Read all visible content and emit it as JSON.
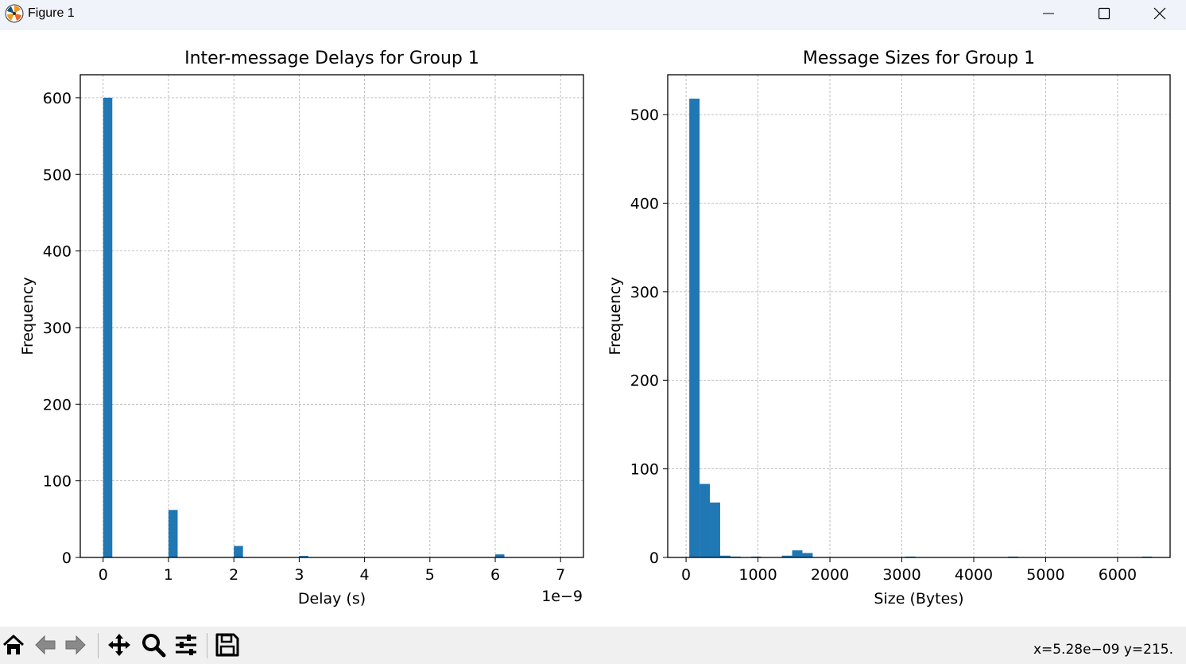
{
  "window": {
    "title": "Figure 1",
    "icon": "matplotlib-icon",
    "controls": {
      "minimize": "minimize-icon",
      "maximize": "maximize-icon",
      "close": "close-icon"
    }
  },
  "toolbar": {
    "tools": [
      "home-icon",
      "back-icon",
      "forward-icon",
      "pan-icon",
      "zoom-icon",
      "configure-subplots-icon",
      "save-icon"
    ],
    "coords": "x=5.28e−09 y=215."
  },
  "colors": {
    "bar": "#1f77b4",
    "grid": "#b0b0b0",
    "axes": "#000000"
  },
  "chart_data": [
    {
      "type": "bar",
      "title": "Inter-message Delays for Group 1",
      "xlabel": "Delay (s)",
      "ylabel": "Frequency",
      "offset_text": "1e−9",
      "x_ticks": [
        0,
        1,
        2,
        3,
        4,
        5,
        6,
        7
      ],
      "x_tick_labels": [
        "0",
        "1",
        "2",
        "3",
        "4",
        "5",
        "6",
        "7"
      ],
      "y_ticks": [
        0,
        100,
        200,
        300,
        400,
        500,
        600
      ],
      "y_tick_labels": [
        "0",
        "100",
        "200",
        "300",
        "400",
        "500",
        "600"
      ],
      "xlim": [
        -0.35,
        7.35
      ],
      "ylim": [
        0,
        630
      ],
      "grid": true,
      "bin_width": 0.14,
      "bars": [
        {
          "x": 0,
          "value": 600
        },
        {
          "x": 1,
          "value": 62
        },
        {
          "x": 2,
          "value": 15
        },
        {
          "x": 3,
          "value": 2
        },
        {
          "x": 6,
          "value": 4
        }
      ]
    },
    {
      "type": "bar",
      "title": "Message Sizes for Group 1",
      "xlabel": "Size (Bytes)",
      "ylabel": "Frequency",
      "offset_text": "",
      "x_ticks": [
        0,
        1000,
        2000,
        3000,
        4000,
        5000,
        6000
      ],
      "x_tick_labels": [
        "0",
        "1000",
        "2000",
        "3000",
        "4000",
        "5000",
        "6000"
      ],
      "y_ticks": [
        0,
        100,
        200,
        300,
        400,
        500
      ],
      "y_tick_labels": [
        "0",
        "100",
        "200",
        "300",
        "400",
        "500"
      ],
      "xlim": [
        -255,
        6730
      ],
      "ylim": [
        0,
        545
      ],
      "grid": true,
      "bin_width": 143,
      "bars": [
        {
          "x": 45,
          "value": 518
        },
        {
          "x": 188,
          "value": 83
        },
        {
          "x": 331,
          "value": 62
        },
        {
          "x": 474,
          "value": 2
        },
        {
          "x": 617,
          "value": 1
        },
        {
          "x": 903,
          "value": 1
        },
        {
          "x": 1332,
          "value": 2
        },
        {
          "x": 1475,
          "value": 8
        },
        {
          "x": 1618,
          "value": 5
        },
        {
          "x": 3048,
          "value": 1
        },
        {
          "x": 4478,
          "value": 1
        },
        {
          "x": 6337,
          "value": 1
        }
      ]
    }
  ]
}
